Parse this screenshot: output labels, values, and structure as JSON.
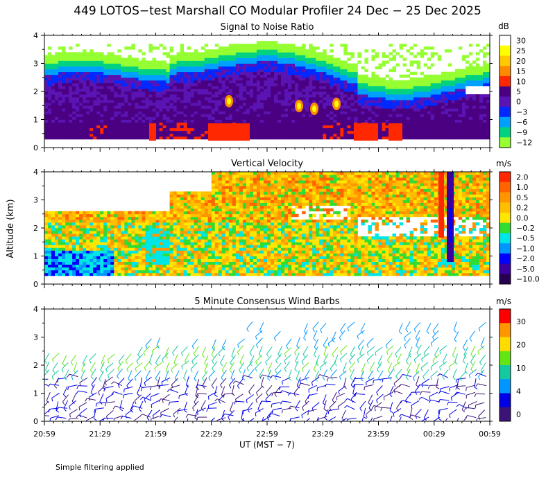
{
  "title": "449 LOTOS−test Marshall CO Modular Profiler 24 Dec − 25 Dec 2025",
  "ylabel": "Altitude (km)",
  "xlabel": "UT  (MST − 7)",
  "footer": "Simple filtering applied",
  "x_ticks": [
    "20:59",
    "21:29",
    "21:59",
    "22:29",
    "22:59",
    "23:29",
    "23:59",
    "00:29",
    "00:59"
  ],
  "y_ticks": [
    "0",
    "1",
    "2",
    "3",
    "4"
  ],
  "chart_data": [
    {
      "type": "heatmap",
      "title": "Signal to Noise Ratio",
      "unit": "dB",
      "x_range": [
        "20:59",
        "00:59"
      ],
      "ylim": [
        0,
        4
      ],
      "colorbar": {
        "labels": [
          "30",
          "25",
          "20",
          "15",
          "10",
          "5",
          "0",
          "−3",
          "−6",
          "−9",
          "−12"
        ],
        "colors": [
          "#ffffff",
          "#ffff00",
          "#ffc800",
          "#ff8c00",
          "#ff2800",
          "#4b0082",
          "#5a14b4",
          "#0028ff",
          "#00a0ff",
          "#00d282",
          "#96ff32"
        ]
      }
    },
    {
      "type": "heatmap",
      "title": "Vertical Velocity",
      "unit": "m/s",
      "x_range": [
        "20:59",
        "00:59"
      ],
      "ylim": [
        0,
        4
      ],
      "colorbar": {
        "labels": [
          "2.0",
          "1.0",
          "0.5",
          "0.2",
          "0.0",
          "−0.2",
          "−0.5",
          "−1.0",
          "−2.0",
          "−5.0",
          "−10.0"
        ],
        "colors": [
          "#ff2800",
          "#ff6400",
          "#ff9600",
          "#ffbe00",
          "#ffe600",
          "#32dc32",
          "#00e6e6",
          "#0096ff",
          "#0000ff",
          "#3c00a0",
          "#280050"
        ]
      }
    },
    {
      "type": "wind_barbs",
      "title": "5 Minute Consensus Wind Barbs",
      "unit": "m/s",
      "x_range": [
        "20:59",
        "00:59"
      ],
      "ylim": [
        0,
        4
      ],
      "colorbar": {
        "labels": [
          "30",
          "20",
          "10",
          "4",
          "0"
        ],
        "colors": [
          "#ff0000",
          "#ff9600",
          "#ffdc00",
          "#64e614",
          "#14c8a0",
          "#0096ff",
          "#0000e6",
          "#3c1478"
        ]
      }
    }
  ]
}
